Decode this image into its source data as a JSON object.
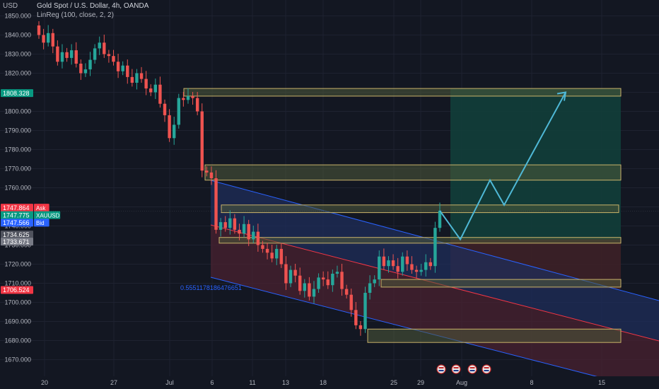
{
  "header": {
    "currency": "USD",
    "symbol": "Gold Spot / U.S. Dollar, 4h, OANDA",
    "indicator": "LinReg (100, close, 2, 2)"
  },
  "colors": {
    "background": "#131722",
    "up": "#26a69a",
    "down": "#ef5350",
    "zone_fill": "#4e5a3a",
    "zone_border": "#c9b26a",
    "channel_upper_fill": "#1f2d5a",
    "channel_lower_fill": "#4a2230",
    "channel_blue_line": "#2962ff",
    "channel_red_line": "#f23645",
    "target_fill": "#123e3a",
    "stop_fill": "#3d2027",
    "projection": "#4fb8d6"
  },
  "price_labels": {
    "current": "1808.328",
    "ask_price": "1747.864",
    "ask_text": "Ask",
    "last_price": "1747.775",
    "last_text": "XAUUSD",
    "bid_price": "1747.566",
    "bid_text": "Bid",
    "level1": "1734.625",
    "level2": "1733.671",
    "level3": "1706.524"
  },
  "annotation": "0.5551178186476651",
  "chart_data": {
    "type": "candlestick",
    "title": "Gold Spot / U.S. Dollar, 4h, OANDA",
    "ylim": [
      1665,
      1855
    ],
    "y_ticks": [
      1670,
      1680,
      1690,
      1700,
      1710,
      1720,
      1730,
      1740,
      1750,
      1760,
      1770,
      1780,
      1790,
      1800,
      1810,
      1820,
      1830,
      1840,
      1850
    ],
    "x_ticks": [
      "20",
      "27",
      "Jul",
      "6",
      "11",
      "13",
      "18",
      "25",
      "29",
      "Aug",
      "8",
      "15"
    ],
    "series": [
      {
        "name": "XAUUSD",
        "close": [
          1840,
          1836,
          1841,
          1834,
          1826,
          1831,
          1828,
          1832,
          1825,
          1820,
          1822,
          1827,
          1833,
          1836,
          1830,
          1829,
          1826,
          1821,
          1824,
          1818,
          1815,
          1820,
          1817,
          1812,
          1810,
          1814,
          1804,
          1798,
          1786,
          1793,
          1807,
          1806,
          1808,
          1807,
          1800,
          1769,
          1768,
          1765,
          1738,
          1742,
          1739,
          1744,
          1738,
          1736,
          1741,
          1733,
          1737,
          1730,
          1728,
          1726,
          1723,
          1728,
          1720,
          1710,
          1717,
          1714,
          1706,
          1710,
          1703,
          1707,
          1713,
          1712,
          1709,
          1715,
          1716,
          1707,
          1704,
          1696,
          1688,
          1686,
          1705,
          1710,
          1712,
          1724,
          1719,
          1722,
          1719,
          1716,
          1724,
          1720,
          1717,
          1716,
          1717,
          1721,
          1719,
          1739,
          1748
        ]
      }
    ],
    "zones": [
      {
        "top": 1812,
        "bottom": 1808
      },
      {
        "top": 1772,
        "bottom": 1764
      },
      {
        "top": 1751,
        "bottom": 1747
      },
      {
        "top": 1734,
        "bottom": 1731
      },
      {
        "top": 1712,
        "bottom": 1708
      },
      {
        "top": 1686,
        "bottom": 1679
      }
    ],
    "projection_path": [
      1733,
      1764,
      1751,
      1810
    ],
    "legend": "none",
    "grid": true
  }
}
